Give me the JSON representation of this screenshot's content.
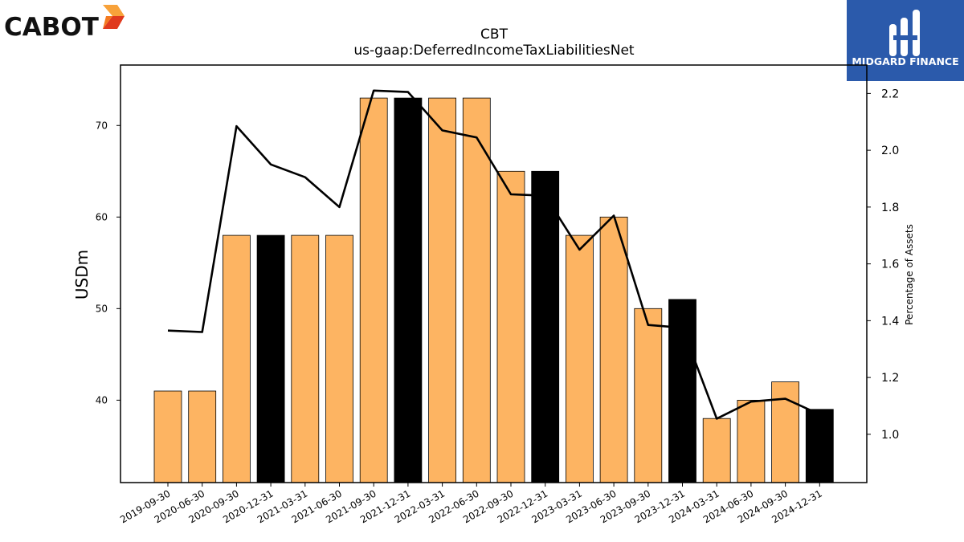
{
  "brand": {
    "left_logo_text": "CABOT",
    "right_logo_text": "MIDGARD FINANCE",
    "accent_orange": "#f47a20",
    "accent_red": "#e03a1e",
    "midgard_blue": "#2b5aab"
  },
  "chart_data": {
    "type": "bar",
    "title": "CBT",
    "subtitle": "us-gaap:DeferredIncomeTaxLiabilitiesNet",
    "ylabel": "USDm",
    "ylabel_right": "Percentage of Assets",
    "xlabel": "",
    "categories": [
      "2019-09-30",
      "2020-06-30",
      "2020-09-30",
      "2020-12-31",
      "2021-03-31",
      "2021-06-30",
      "2021-09-30",
      "2021-12-31",
      "2022-03-31",
      "2022-06-30",
      "2022-09-30",
      "2022-12-31",
      "2023-03-31",
      "2023-06-30",
      "2023-09-30",
      "2023-12-31",
      "2024-03-31",
      "2024-06-30",
      "2024-09-30",
      "2024-12-31"
    ],
    "series": [
      {
        "type": "bar",
        "values": [
          41,
          41,
          58,
          58,
          58,
          58,
          73,
          73,
          73,
          73,
          65,
          65,
          58,
          60,
          50,
          51,
          38,
          40,
          42,
          39
        ],
        "highlight": [
          false,
          false,
          false,
          true,
          false,
          false,
          false,
          true,
          false,
          false,
          false,
          true,
          false,
          false,
          false,
          true,
          false,
          false,
          false,
          true
        ],
        "color": "#fdb462",
        "highlight_color": "#000000"
      },
      {
        "type": "line",
        "axis": "right",
        "values": [
          1.365,
          1.36,
          2.085,
          1.95,
          1.905,
          1.8,
          2.21,
          2.205,
          2.07,
          2.045,
          1.845,
          1.84,
          1.65,
          1.77,
          1.385,
          1.375,
          1.055,
          1.115,
          1.125,
          1.07
        ],
        "color": "#000000"
      }
    ],
    "ylim": [
      31,
      76.6
    ],
    "yticks": [
      40,
      50,
      60,
      70
    ],
    "ylim_right": [
      0.83,
      2.3
    ],
    "yticks_right": [
      1.0,
      1.2,
      1.4,
      1.6,
      1.8,
      2.0,
      2.2
    ],
    "ytick_labels_right": [
      "1.0",
      "1.2",
      "1.4",
      "1.6",
      "1.8",
      "2.0",
      "2.2"
    ],
    "grid": false,
    "legend": "none"
  }
}
